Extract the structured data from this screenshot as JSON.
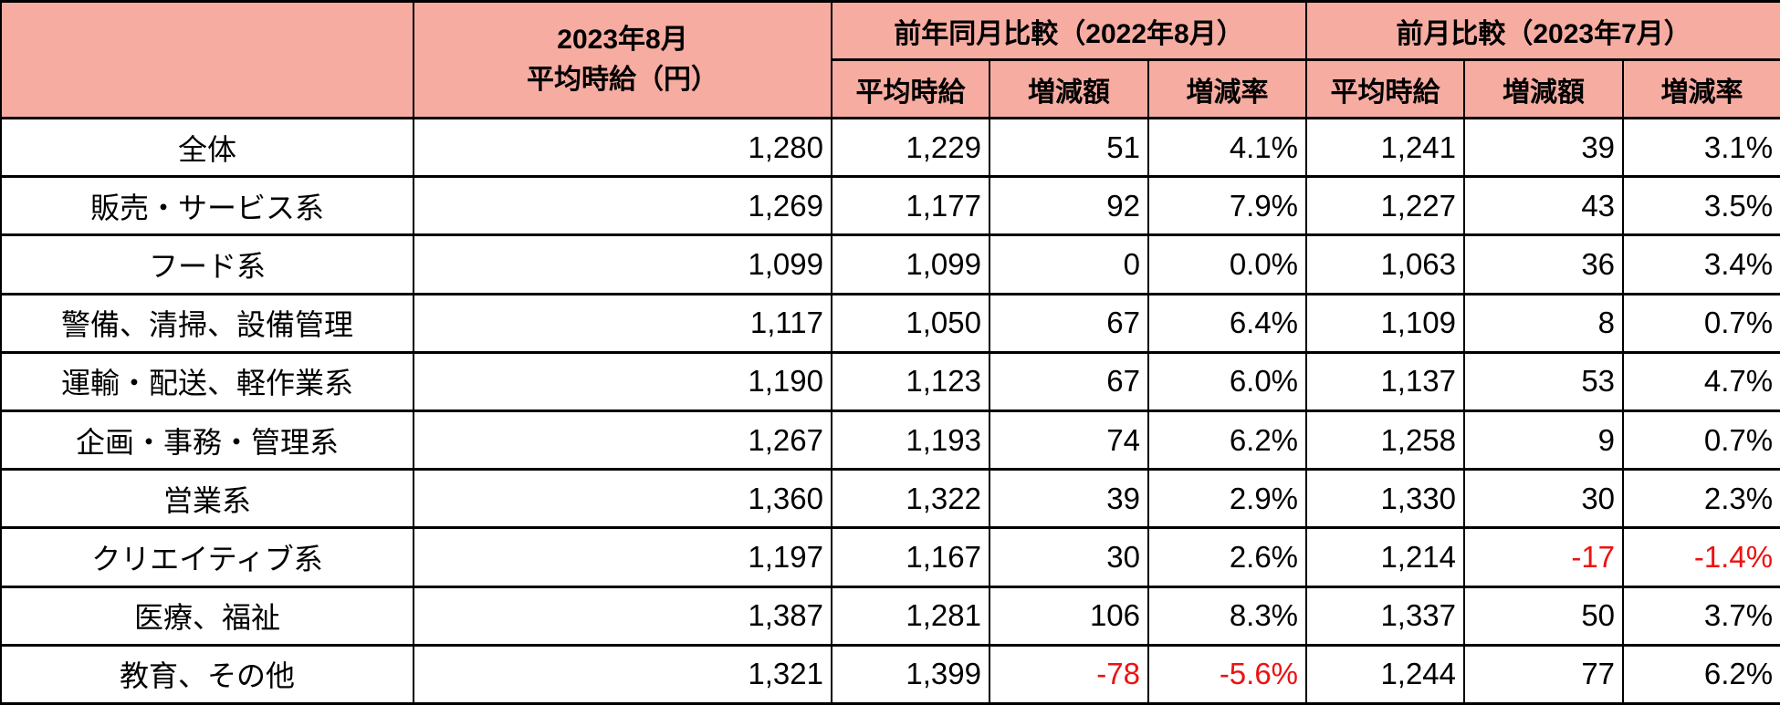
{
  "colors": {
    "header_pink": "#F7ACA1",
    "border_black": "#000000",
    "negative_red": "#EE1111"
  },
  "table": {
    "corner_label": "",
    "main_column_header": {
      "line1": "2023年8月",
      "line2": "平均時給（円）"
    },
    "group_headers": {
      "yoy": "前年同月比較（2022年8月）",
      "mom": "前月比較（2023年7月）"
    },
    "sub_headers": [
      "平均時給",
      "増減額",
      "増減率"
    ],
    "rows": [
      {
        "label": "全体",
        "values": [
          "1,280",
          "1,229",
          "51",
          "4.1%",
          "1,241",
          "39",
          "3.1%"
        ]
      },
      {
        "label": "販売・サービス系",
        "values": [
          "1,269",
          "1,177",
          "92",
          "7.9%",
          "1,227",
          "43",
          "3.5%"
        ]
      },
      {
        "label": "フード系",
        "values": [
          "1,099",
          "1,099",
          "0",
          "0.0%",
          "1,063",
          "36",
          "3.4%"
        ]
      },
      {
        "label": "警備、清掃、設備管理",
        "values": [
          "1,117",
          "1,050",
          "67",
          "6.4%",
          "1,109",
          "8",
          "0.7%"
        ]
      },
      {
        "label": "運輸・配送、軽作業系",
        "values": [
          "1,190",
          "1,123",
          "67",
          "6.0%",
          "1,137",
          "53",
          "4.7%"
        ]
      },
      {
        "label": "企画・事務・管理系",
        "values": [
          "1,267",
          "1,193",
          "74",
          "6.2%",
          "1,258",
          "9",
          "0.7%"
        ]
      },
      {
        "label": "営業系",
        "values": [
          "1,360",
          "1,322",
          "39",
          "2.9%",
          "1,330",
          "30",
          "2.3%"
        ]
      },
      {
        "label": "クリエイティブ系",
        "values": [
          "1,197",
          "1,167",
          "30",
          "2.6%",
          "1,214",
          "-17",
          "-1.4%"
        ]
      },
      {
        "label": "医療、福祉",
        "values": [
          "1,387",
          "1,281",
          "106",
          "8.3%",
          "1,337",
          "50",
          "3.7%"
        ]
      },
      {
        "label": "教育、その他",
        "values": [
          "1,321",
          "1,399",
          "-78",
          "-5.6%",
          "1,244",
          "77",
          "6.2%"
        ]
      }
    ]
  },
  "chart_data": {
    "type": "table",
    "column_groups": [
      "",
      "2023年8月 平均時給（円）",
      "前年同月比較（2022年8月）",
      "前月比較（2023年7月）"
    ],
    "columns": [
      "",
      "2023年8月 平均時給（円）",
      "平均時給",
      "増減額",
      "増減率",
      "平均時給",
      "増減額",
      "増減率"
    ],
    "rows": [
      {
        "label": "全体",
        "aug_2023_avg": 1280,
        "yoy_avg": 1229,
        "yoy_change": 51,
        "yoy_rate_pct": 4.1,
        "mom_avg": 1241,
        "mom_change": 39,
        "mom_rate_pct": 3.1
      },
      {
        "label": "販売・サービス系",
        "aug_2023_avg": 1269,
        "yoy_avg": 1177,
        "yoy_change": 92,
        "yoy_rate_pct": 7.9,
        "mom_avg": 1227,
        "mom_change": 43,
        "mom_rate_pct": 3.5
      },
      {
        "label": "フード系",
        "aug_2023_avg": 1099,
        "yoy_avg": 1099,
        "yoy_change": 0,
        "yoy_rate_pct": 0.0,
        "mom_avg": 1063,
        "mom_change": 36,
        "mom_rate_pct": 3.4
      },
      {
        "label": "警備、清掃、設備管理",
        "aug_2023_avg": 1117,
        "yoy_avg": 1050,
        "yoy_change": 67,
        "yoy_rate_pct": 6.4,
        "mom_avg": 1109,
        "mom_change": 8,
        "mom_rate_pct": 0.7
      },
      {
        "label": "運輸・配送、軽作業系",
        "aug_2023_avg": 1190,
        "yoy_avg": 1123,
        "yoy_change": 67,
        "yoy_rate_pct": 6.0,
        "mom_avg": 1137,
        "mom_change": 53,
        "mom_rate_pct": 4.7
      },
      {
        "label": "企画・事務・管理系",
        "aug_2023_avg": 1267,
        "yoy_avg": 1193,
        "yoy_change": 74,
        "yoy_rate_pct": 6.2,
        "mom_avg": 1258,
        "mom_change": 9,
        "mom_rate_pct": 0.7
      },
      {
        "label": "営業系",
        "aug_2023_avg": 1360,
        "yoy_avg": 1322,
        "yoy_change": 39,
        "yoy_rate_pct": 2.9,
        "mom_avg": 1330,
        "mom_change": 30,
        "mom_rate_pct": 2.3
      },
      {
        "label": "クリエイティブ系",
        "aug_2023_avg": 1197,
        "yoy_avg": 1167,
        "yoy_change": 30,
        "yoy_rate_pct": 2.6,
        "mom_avg": 1214,
        "mom_change": -17,
        "mom_rate_pct": -1.4
      },
      {
        "label": "医療、福祉",
        "aug_2023_avg": 1387,
        "yoy_avg": 1281,
        "yoy_change": 106,
        "yoy_rate_pct": 8.3,
        "mom_avg": 1337,
        "mom_change": 50,
        "mom_rate_pct": 3.7
      },
      {
        "label": "教育、その他",
        "aug_2023_avg": 1321,
        "yoy_avg": 1399,
        "yoy_change": -78,
        "yoy_rate_pct": -5.6,
        "mom_avg": 1244,
        "mom_change": 77,
        "mom_rate_pct": 6.2
      }
    ],
    "layout": {
      "negative_values_in_red": true,
      "header_fill": "#F7ACA1",
      "grid": "all-borders-black"
    }
  }
}
